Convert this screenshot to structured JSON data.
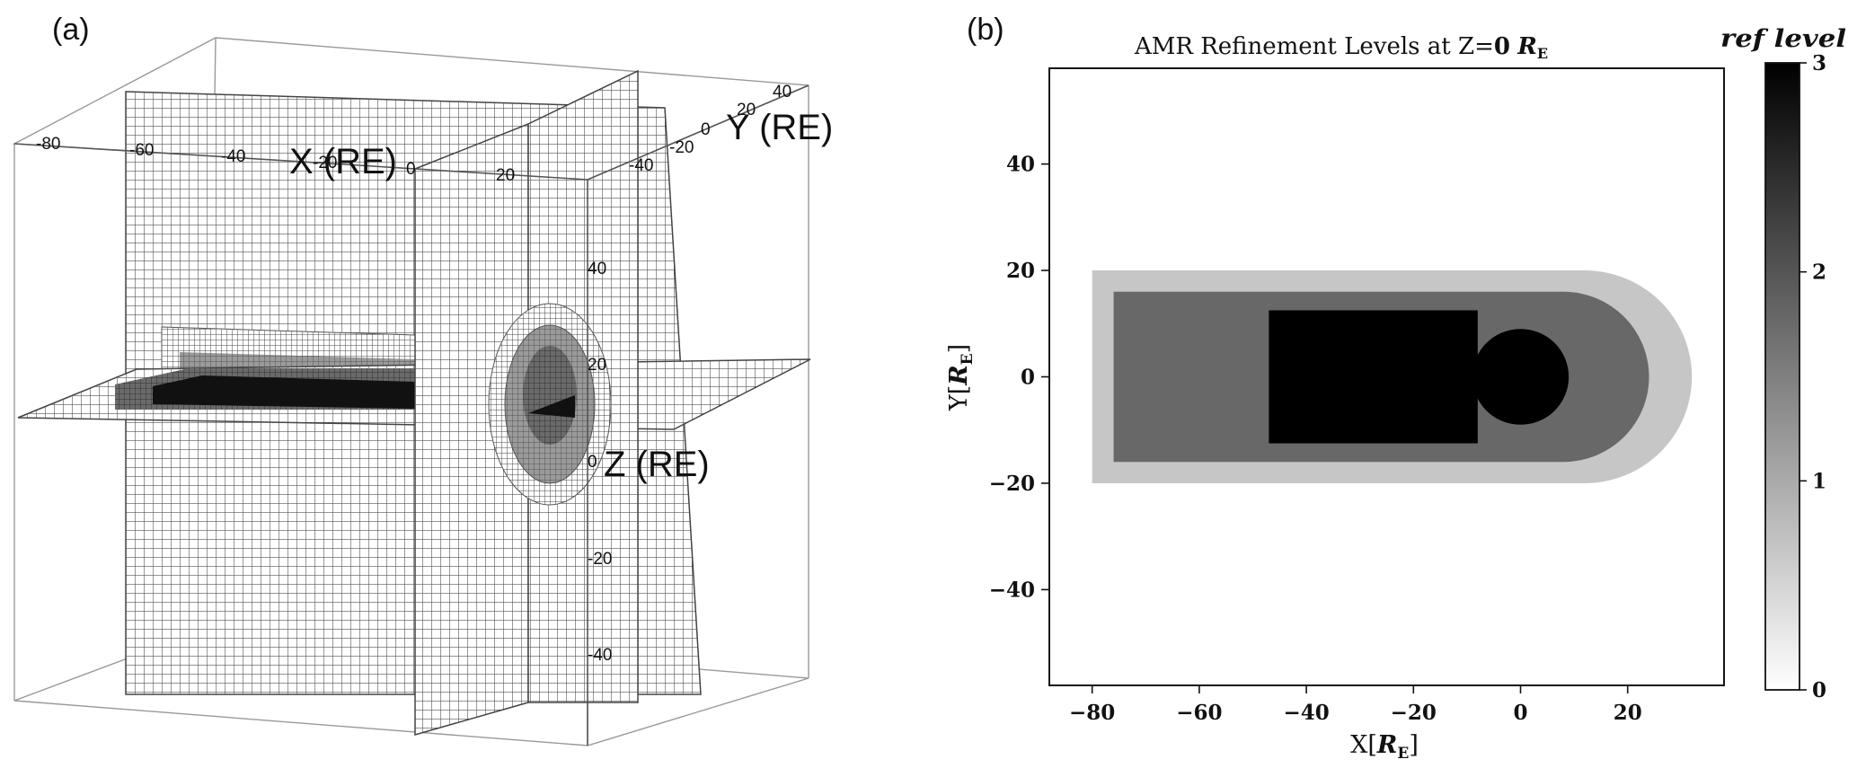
{
  "panels": {
    "a": {
      "label": "(a)",
      "axis_labels": {
        "x": "X (RE)",
        "y": "Y (RE)",
        "z": "Z (RE)"
      },
      "x_ticks": [
        "-80",
        "-60",
        "-40",
        "-20",
        "0",
        "20"
      ],
      "y_ticks": [
        "-40",
        "-20",
        "0",
        "20",
        "40"
      ],
      "z_ticks": [
        "40",
        "20",
        "0",
        "-20",
        "-40"
      ]
    },
    "b": {
      "label": "(b)"
    }
  },
  "chart_data": {
    "type": "heatmap",
    "title": "AMR Refinement Levels at Z=",
    "title_value": "0",
    "title_unit": "R",
    "title_unit_sub": "E",
    "xlabel": "X[",
    "xlabel_unit": "R",
    "xlabel_sub": "E",
    "xlabel_close": "]",
    "ylabel": "Y[",
    "ylabel_unit": "R",
    "ylabel_sub": "E",
    "ylabel_close": "]",
    "xlim": [
      -88,
      38
    ],
    "ylim": [
      -58,
      58
    ],
    "x_ticks": [
      -80,
      -60,
      -40,
      -20,
      0,
      20
    ],
    "y_ticks": [
      -40,
      -20,
      0,
      20,
      40
    ],
    "x_tick_labels": [
      "−80",
      "−60",
      "−40",
      "−20",
      "0",
      "20"
    ],
    "y_tick_labels": [
      "−40",
      "−20",
      "0",
      "20",
      "40"
    ],
    "colorbar": {
      "title": "ref level",
      "range": [
        0,
        3
      ],
      "ticks": [
        0,
        1,
        2,
        3
      ],
      "tick_labels": [
        "0",
        "1",
        "2",
        "3"
      ]
    },
    "regions": [
      {
        "level": 1,
        "color": "#c6c6c6",
        "shape": "rect-with-cap",
        "x": [
          -80,
          12
        ],
        "y": [
          -20,
          20
        ],
        "cap_radius": 20
      },
      {
        "level": 2,
        "color": "#686868",
        "shape": "rect-with-cap",
        "x": [
          -76,
          8
        ],
        "y": [
          -16,
          16
        ],
        "cap_radius": 16
      },
      {
        "level": 3,
        "color": "#000000",
        "shape": "rect",
        "x": [
          -47,
          -8
        ],
        "y": [
          -12.5,
          12.5
        ]
      },
      {
        "level": 3,
        "color": "#000000",
        "shape": "circle",
        "center": [
          0,
          0
        ],
        "radius": 9
      }
    ]
  }
}
